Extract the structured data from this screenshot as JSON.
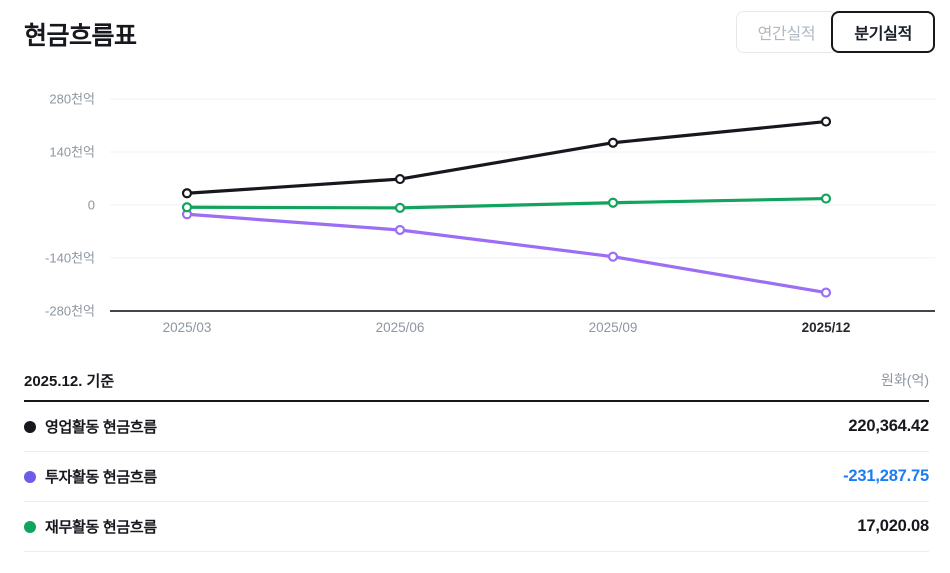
{
  "header": {
    "title": "현금흐름표",
    "buttons": [
      {
        "label": "연간실적",
        "active": false
      },
      {
        "label": "분기실적",
        "active": true
      }
    ]
  },
  "chart_data": {
    "type": "line",
    "title": "현금흐름표 분기실적 추이",
    "x_labels": [
      "2025/03",
      "2025/06",
      "2025/09",
      "2025/12"
    ],
    "y_ticks": [
      "280천억",
      "140천억",
      "0",
      "-140천억",
      "-280천억"
    ],
    "y_tick_values": [
      280,
      140,
      0,
      -140,
      -280
    ],
    "y_unit": "천억",
    "value_unit": "억",
    "grid": true,
    "legend_position": "table-below",
    "grid_color": "#f1f2f4",
    "axis_color": "#41464d",
    "tick_color": "#8d96a1",
    "active_tick_color": "#26282c",
    "series": [
      {
        "name": "영업활동 현금흐름",
        "color": "#17181d",
        "values": [
          31000,
          68500,
          164500,
          220364.42
        ]
      },
      {
        "name": "투자활동 현금흐름",
        "color": "#9b6ef3",
        "values": [
          -24500,
          -66000,
          -136500,
          -231287.75
        ]
      },
      {
        "name": "재무활동 현금흐름",
        "color": "#12a35f",
        "values": [
          -6000,
          -7500,
          6000,
          17020.08
        ]
      }
    ]
  },
  "table": {
    "basis": "2025.12. 기준",
    "unit_label": "원화(억)",
    "rows": [
      {
        "label": "영업활동 현금흐름",
        "value": "220,364.42",
        "dot_color": "#17181d",
        "value_color": "#17181d"
      },
      {
        "label": "투자활동 현금흐름",
        "value": "-231,287.75",
        "dot_color": "#6c5ce7",
        "value_color": "#1b7df5"
      },
      {
        "label": "재무활동 현금흐름",
        "value": "17,020.08",
        "dot_color": "#12a35f",
        "value_color": "#17181d"
      }
    ]
  },
  "colors": {
    "text_primary": "#17181d",
    "text_grey": "#8d96a1",
    "negative_blue": "#1b7df5",
    "purple_line": "#9b6ef3",
    "purple_legend": "#6c5ce7",
    "green": "#12a35f",
    "inactive_text": "#b0b8c1",
    "inactive_border": "#e5e8eb",
    "divider": "#ececee"
  }
}
